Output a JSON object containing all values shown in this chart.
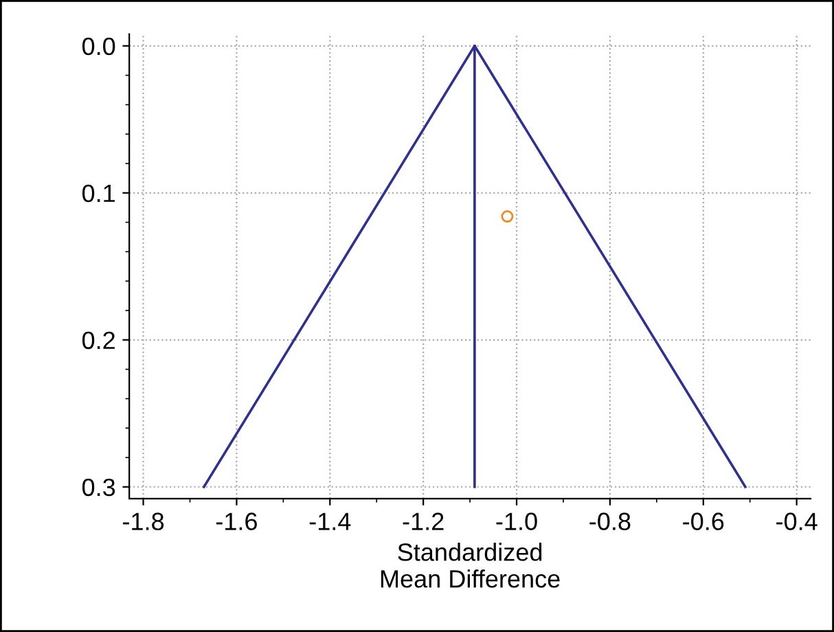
{
  "chart_data": {
    "type": "line",
    "xlabel": "Standardized\nMean Difference",
    "xlim": [
      -1.83,
      -0.37
    ],
    "xticks": [
      -1.8,
      -1.6,
      -1.4,
      -1.2,
      {
        "value": -1.0,
        "label": "-1.0"
      },
      -0.8,
      -0.6,
      -0.4
    ],
    "ylim": [
      0.308,
      -0.008
    ],
    "yticks": [
      {
        "value": 0.0,
        "label": "0.0"
      },
      0.1,
      0.2,
      0.3
    ],
    "grid": true,
    "series": [
      {
        "color": "#2e3192",
        "x": [
          -1.67,
          -1.09,
          -0.51
        ],
        "values": [
          0.3,
          0.0,
          0.3
        ]
      },
      {
        "color": "#2e3192",
        "x": [
          -1.09,
          -1.09
        ],
        "values": [
          0.0,
          0.3
        ]
      },
      {
        "type": "scatter",
        "color": "#f08a24",
        "marker": "circle",
        "x": [
          -1.02
        ],
        "values": [
          0.116
        ]
      }
    ]
  }
}
